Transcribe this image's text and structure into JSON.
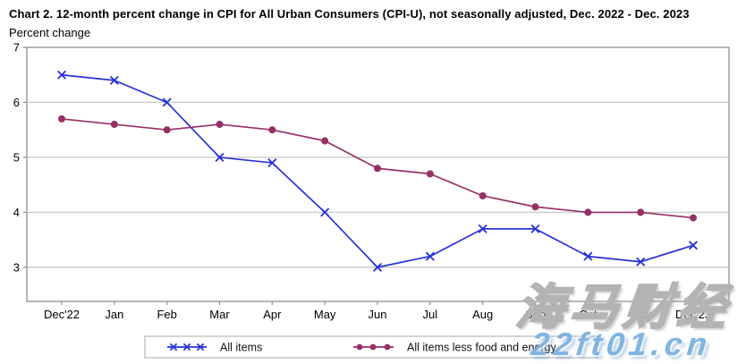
{
  "header": {
    "title": "Chart 2. 12-month percent change in CPI for All Urban Consumers (CPI-U), not seasonally adjusted, Dec. 2022 - Dec. 2023",
    "subtitle": "Percent change"
  },
  "watermark": {
    "cjk_text": "海马财经",
    "url_text": "22ft01.cn",
    "url_color": "#7bb0e0"
  },
  "colors": {
    "all_items_line": "#2832d6",
    "core_line": "#963066",
    "gridline": "#cbcbcb",
    "plot_border": "#a3a3a3",
    "tick": "#8c8c8c",
    "legend_border": "#a9a9a9"
  },
  "chart_data": {
    "type": "line",
    "title": "Chart 2. 12-month percent change in CPI for All Urban Consumers (CPI-U), not seasonally adjusted, Dec. 2022 - Dec. 2023",
    "ylabel": "Percent change",
    "xlabel": "",
    "categories": [
      "Dec'22",
      "Jan",
      "Feb",
      "Mar",
      "Apr",
      "May",
      "Jun",
      "Jul",
      "Aug",
      "Sep",
      "Oct",
      "Nov",
      "Dec'23"
    ],
    "series": [
      {
        "name": "All items",
        "marker": "x",
        "color": "#2832d6",
        "values": [
          6.5,
          6.4,
          6.0,
          5.0,
          4.9,
          4.0,
          3.0,
          3.2,
          3.7,
          3.7,
          3.2,
          3.1,
          3.4
        ]
      },
      {
        "name": "All items less food and energy",
        "marker": "circle",
        "color": "#963066",
        "values": [
          5.7,
          5.6,
          5.5,
          5.6,
          5.5,
          5.3,
          4.8,
          4.7,
          4.3,
          4.1,
          4.0,
          4.0,
          3.9
        ]
      }
    ],
    "yticks": [
      7,
      6,
      5,
      4,
      3
    ],
    "ylim": [
      2.38,
      7
    ],
    "grid": "horizontal",
    "legend_position": "bottom"
  }
}
